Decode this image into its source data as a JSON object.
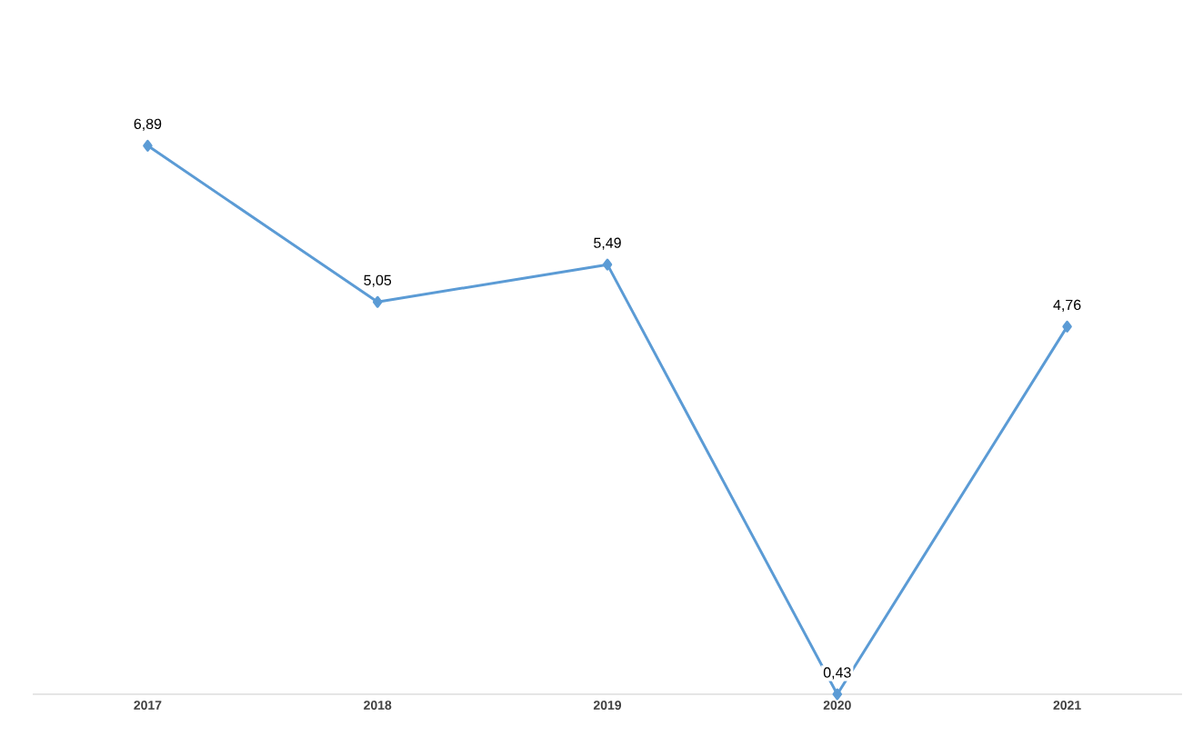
{
  "chart_data": {
    "type": "line",
    "categories": [
      "2017",
      "2018",
      "2019",
      "2020",
      "2021"
    ],
    "series": [
      {
        "color": "#5b9bd5",
        "values": [
          6.89,
          5.05,
          5.49,
          0.43,
          4.76
        ],
        "value_labels": [
          "6,89",
          "5,05",
          "5,49",
          "0,43",
          "4,76"
        ]
      }
    ],
    "tick_labels": "x",
    "grid": false,
    "marker": "diamond",
    "line_style": "solid"
  }
}
